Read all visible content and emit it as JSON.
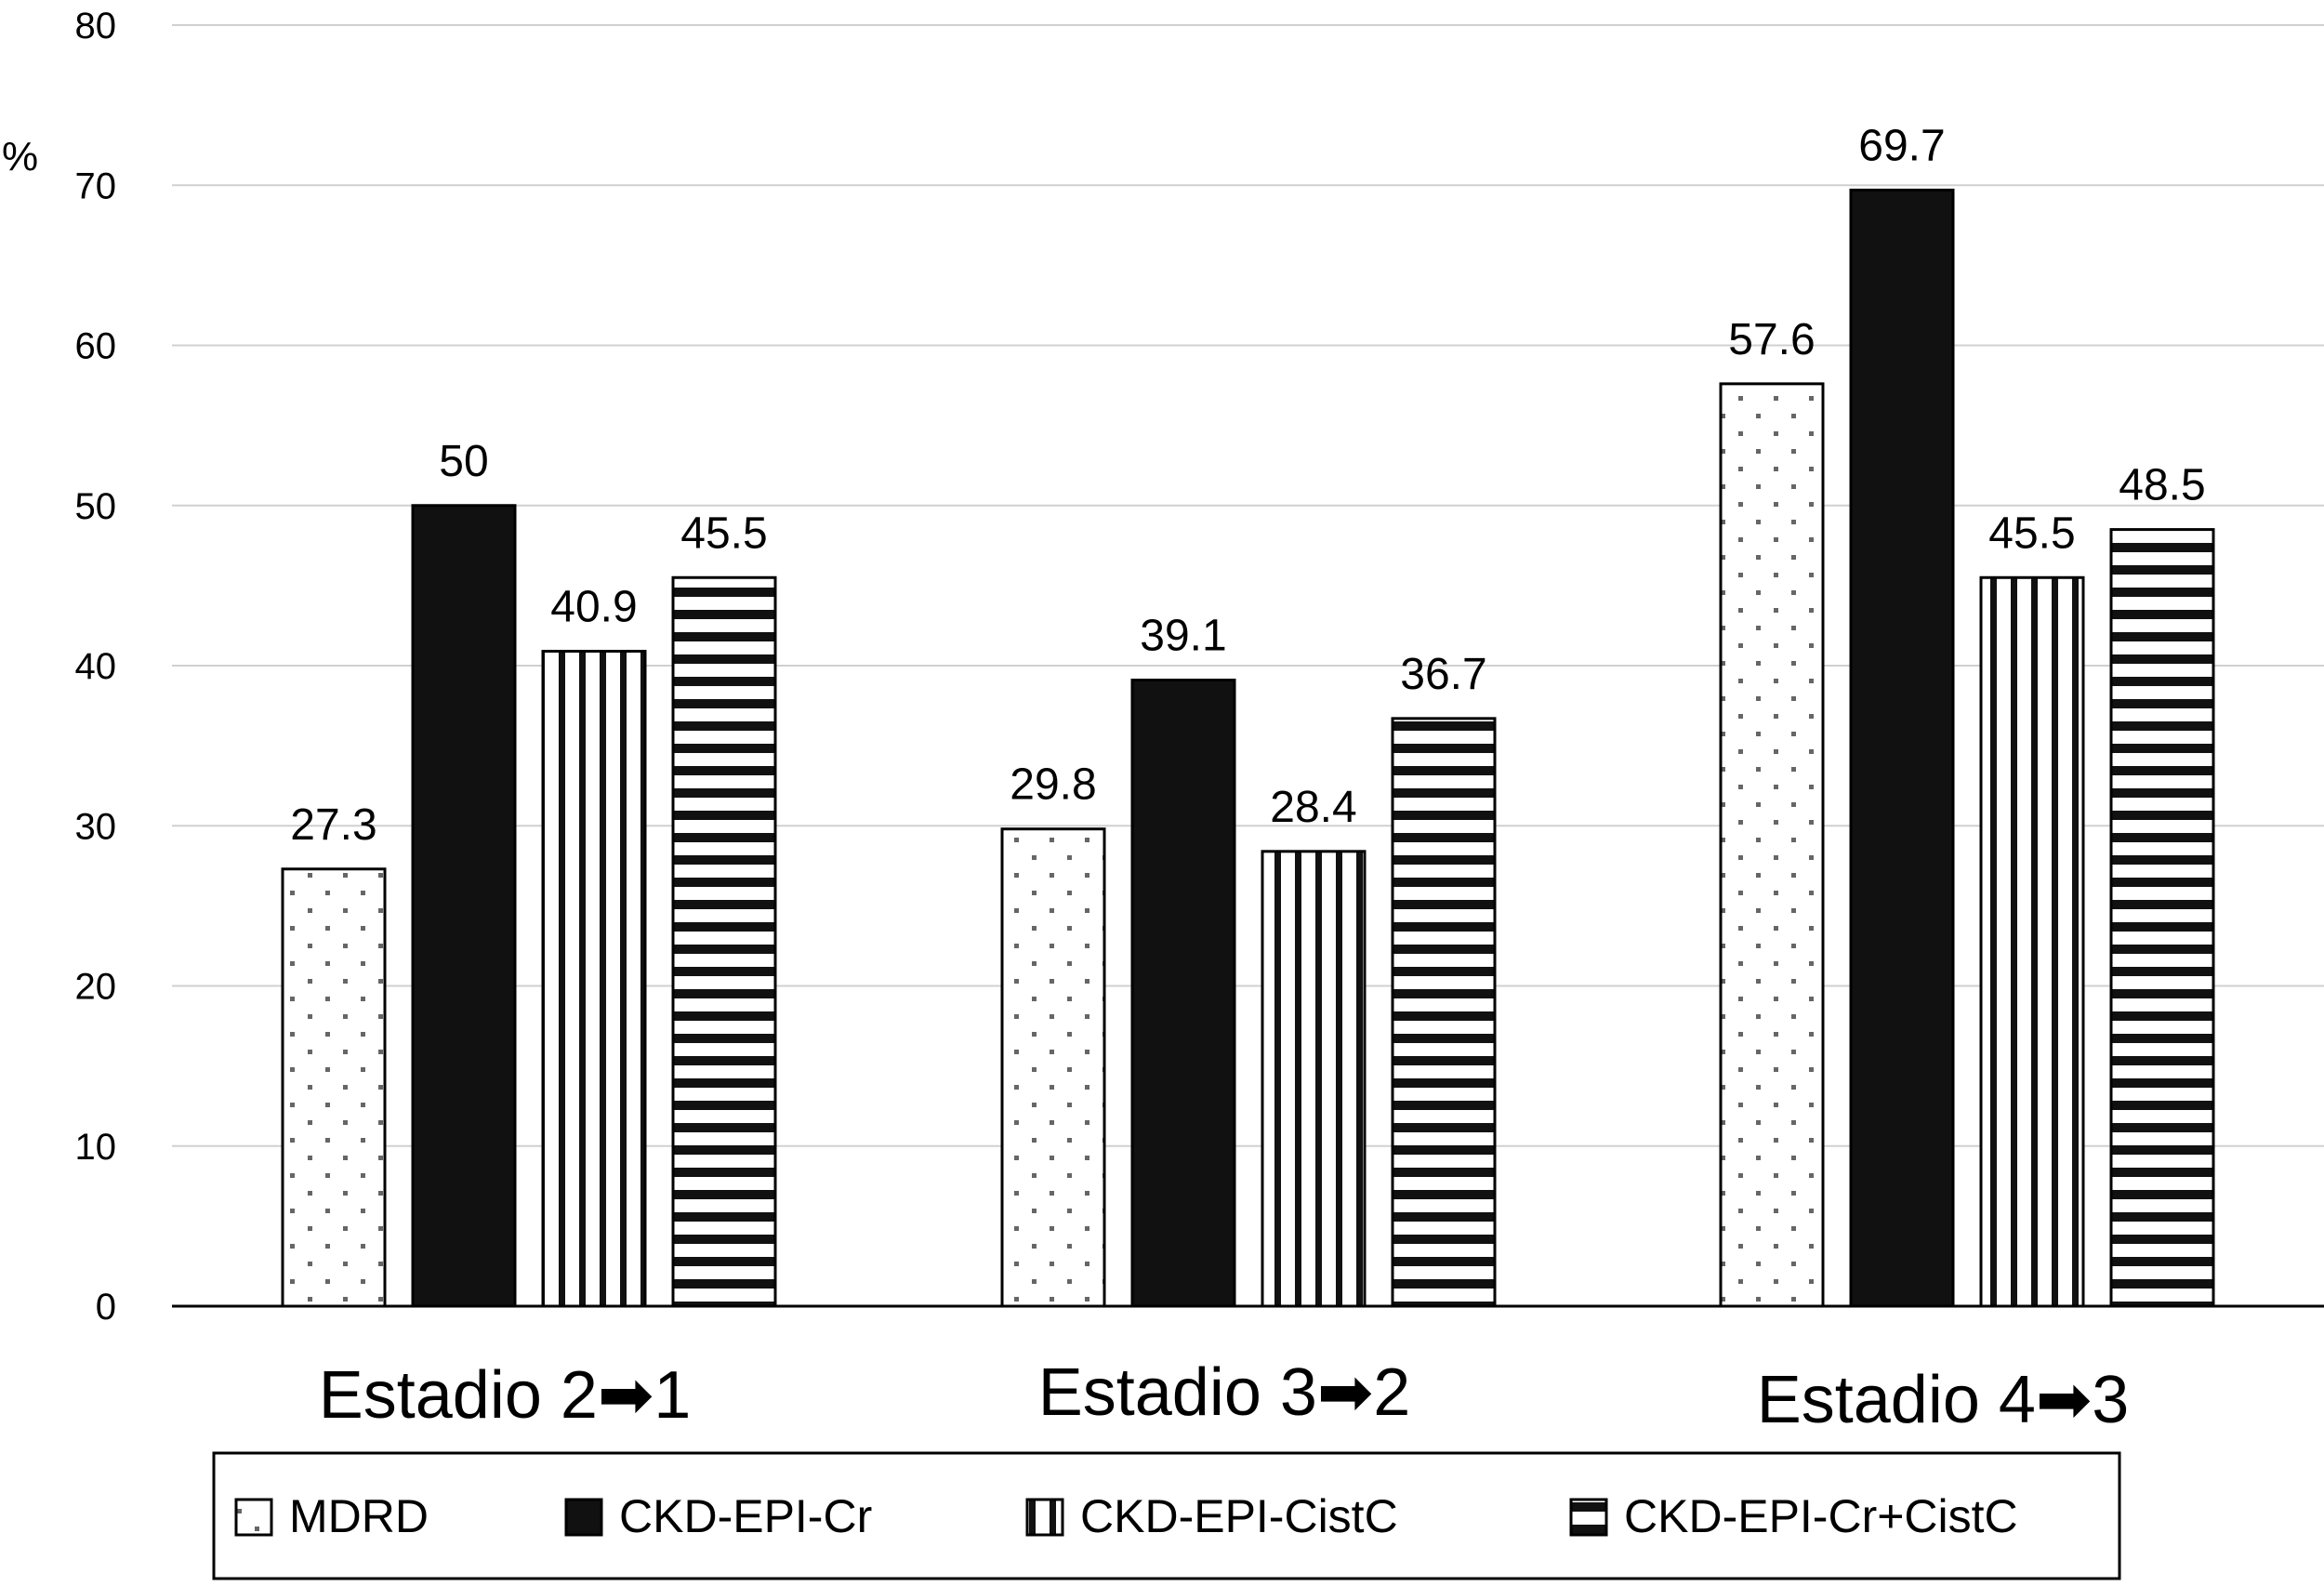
{
  "chart_data": {
    "type": "bar",
    "ylabel": "%",
    "ylim": [
      0,
      80
    ],
    "yticks": [
      0,
      10,
      20,
      30,
      40,
      50,
      60,
      70,
      80
    ],
    "grid": true,
    "legend_position": "bottom",
    "categories": [
      "Estadio 2➡1",
      "Estadio 3➡2",
      "Estadio 4➡3"
    ],
    "series": [
      {
        "name": "MDRD",
        "pattern": "dots",
        "color": "#ffffff",
        "values": [
          27.3,
          29.8,
          57.6
        ],
        "labels": [
          "27.3",
          "29.8",
          "57.6"
        ]
      },
      {
        "name": "CKD-EPI-Cr",
        "pattern": "solid",
        "color": "#111111",
        "values": [
          50,
          39.1,
          69.7
        ],
        "labels": [
          "50",
          "39.1",
          "69.7"
        ]
      },
      {
        "name": "CKD-EPI-CistC",
        "pattern": "vertical-stripes",
        "color": "#ffffff",
        "values": [
          40.9,
          28.4,
          45.5
        ],
        "labels": [
          "40.9",
          "28.4",
          "45.5"
        ]
      },
      {
        "name": "CKD-EPI-Cr+CistC",
        "pattern": "horizontal-stripes",
        "color": "#ffffff",
        "values": [
          45.5,
          36.7,
          48.5
        ],
        "labels": [
          "45.5",
          "36.7",
          "48.5"
        ]
      }
    ]
  }
}
